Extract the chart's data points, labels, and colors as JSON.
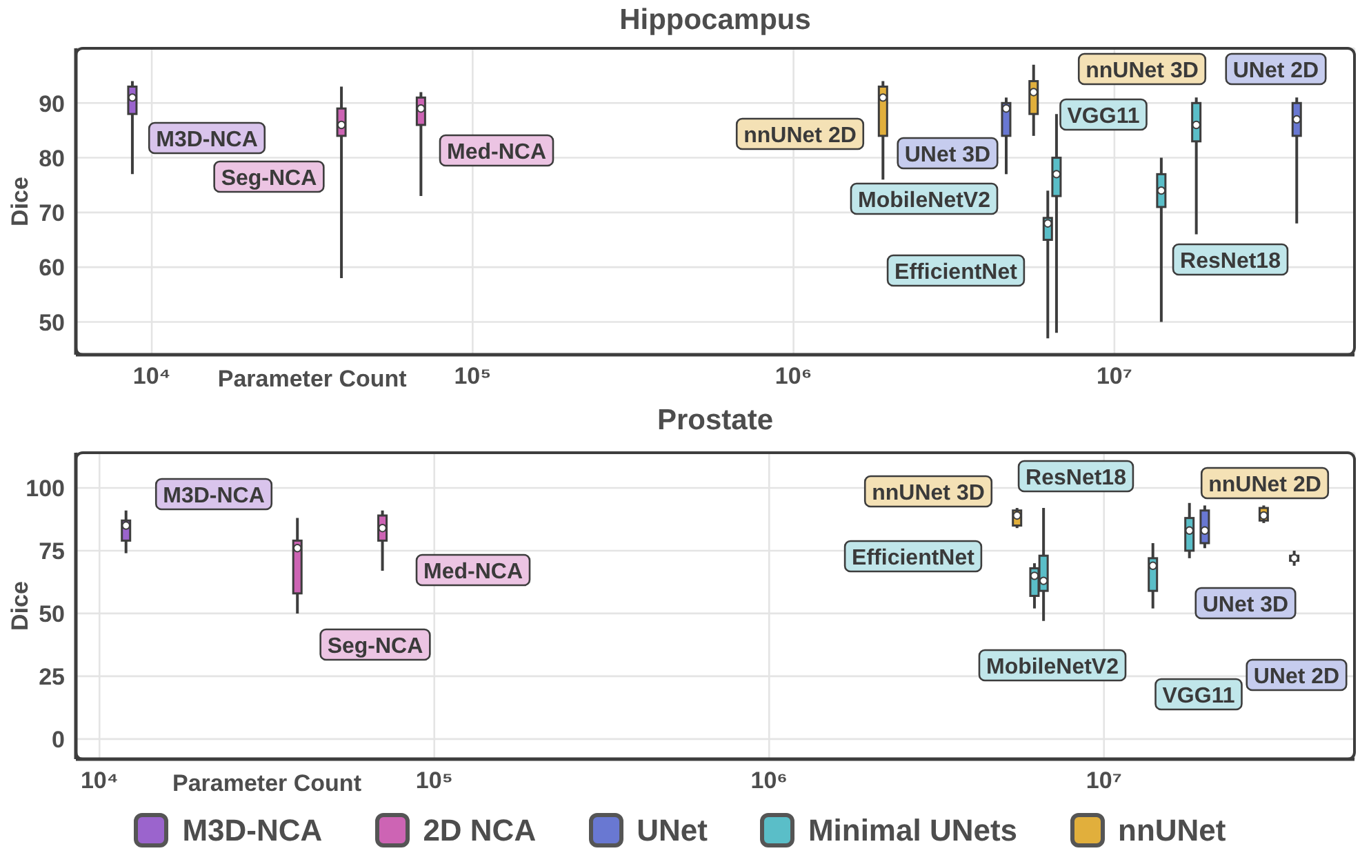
{
  "chart_data": [
    {
      "type": "box",
      "title": "Hippocampus",
      "xlabel": "Parameter Count",
      "ylabel": "Dice",
      "log": "x",
      "xlim": [
        5800,
        56000000
      ],
      "xticks": [
        {
          "value": 10000,
          "label": "10⁴"
        },
        {
          "value": 100000,
          "label": "10⁵"
        },
        {
          "value": 1000000,
          "label": "10⁶"
        },
        {
          "value": 10000000,
          "label": "10⁷"
        }
      ],
      "ylim": [
        44,
        100
      ],
      "yticks": [
        50,
        60,
        70,
        80,
        90
      ],
      "grid": true,
      "series": [
        {
          "color": "#9b64cd",
          "x": [
            8700
          ],
          "boxes": [
            {
              "low": 77,
              "q1": 88,
              "median": 91,
              "q3": 93,
              "high": 94
            }
          ]
        },
        {
          "color": "#cd64b4",
          "x": [
            39000,
            69000
          ],
          "boxes": [
            {
              "low": 58,
              "q1": 84,
              "median": 86,
              "q3": 89,
              "high": 93
            },
            {
              "low": 73,
              "q1": 86,
              "median": 89,
              "q3": 91,
              "high": 92
            }
          ]
        },
        {
          "color": "#6978d2",
          "x": [
            4600000,
            37000000
          ],
          "boxes": [
            {
              "low": 77,
              "q1": 84,
              "median": 89,
              "q3": 90,
              "high": 91
            },
            {
              "low": 68,
              "q1": 84,
              "median": 87,
              "q3": 90,
              "high": 91
            }
          ]
        },
        {
          "color": "#5abec8",
          "x": [
            6200000,
            6600000,
            14000000,
            18000000
          ],
          "boxes": [
            {
              "low": 47,
              "q1": 65,
              "median": 68,
              "q3": 69,
              "high": 74
            },
            {
              "low": 48,
              "q1": 73,
              "median": 77,
              "q3": 80,
              "high": 88
            },
            {
              "low": 50,
              "q1": 71,
              "median": 74,
              "q3": 77,
              "high": 80
            },
            {
              "low": 66,
              "q1": 83,
              "median": 86,
              "q3": 90,
              "high": 91
            }
          ]
        },
        {
          "color": "#e1af3c",
          "x": [
            1900000,
            5600000
          ],
          "boxes": [
            {
              "low": 76,
              "q1": 84,
              "median": 91,
              "q3": 93,
              "high": 94
            },
            {
              "low": 84,
              "q1": 88,
              "median": 92,
              "q3": 94,
              "high": 97
            }
          ]
        }
      ],
      "annotations": [
        "M3D-NCA",
        "Seg-NCA",
        "Med-NCA",
        "UNet 3D",
        "UNet 2D",
        "EfficientNet",
        "MobileNetV2",
        "ResNet18",
        "VGG11",
        "nnUNet 2D",
        "nnUNet 3D"
      ]
    },
    {
      "type": "box",
      "title": "Prostate",
      "xlabel": "Parameter Count",
      "ylabel": "Dice",
      "log": "x",
      "xlim": [
        8500,
        56000000
      ],
      "xticks": [
        {
          "value": 10000,
          "label": "10⁴"
        },
        {
          "value": 100000,
          "label": "10⁵"
        },
        {
          "value": 1000000,
          "label": "10⁶"
        },
        {
          "value": 10000000,
          "label": "10⁷"
        }
      ],
      "ylim": [
        -8,
        114
      ],
      "yticks": [
        0,
        25,
        50,
        75,
        100
      ],
      "grid": true,
      "legend": "bottom",
      "series": [
        {
          "name": "M3D-NCA",
          "color": "#9b64cd",
          "x": [
            12000
          ],
          "boxes": [
            {
              "low": 74,
              "q1": 79,
              "median": 85,
              "q3": 87,
              "high": 91
            }
          ]
        },
        {
          "name": "2D NCA",
          "color": "#cd64b4",
          "x": [
            39000,
            70000
          ],
          "boxes": [
            {
              "low": 50,
              "q1": 58,
              "median": 76,
              "q3": 79,
              "high": 88
            },
            {
              "low": 67,
              "q1": 79,
              "median": 84,
              "q3": 89,
              "high": 91
            }
          ]
        },
        {
          "name": "UNet",
          "color": "#6978d2",
          "x": [
            20000000,
            37000000
          ],
          "boxes": [
            {
              "low": 76,
              "q1": 78,
              "median": 83,
              "q3": 91,
              "high": 93
            },
            {
              "low": 69,
              "q1": 71,
              "median": 72,
              "q3": 73,
              "high": 75
            }
          ]
        },
        {
          "name": "Minimal UNets",
          "color": "#5abec8",
          "x": [
            6200000,
            6600000,
            14000000,
            18000000
          ],
          "boxes": [
            {
              "low": 52,
              "q1": 57,
              "median": 65,
              "q3": 68,
              "high": 70
            },
            {
              "low": 47,
              "q1": 59,
              "median": 63,
              "q3": 73,
              "high": 92
            },
            {
              "low": 52,
              "q1": 59,
              "median": 69,
              "q3": 72,
              "high": 78
            },
            {
              "low": 72,
              "q1": 75,
              "median": 83,
              "q3": 88,
              "high": 94
            }
          ]
        },
        {
          "name": "nnUNet",
          "color": "#e1af3c",
          "x": [
            30000000,
            5500000
          ],
          "boxes": [
            {
              "low": 86,
              "q1": 87,
              "median": 89,
              "q3": 92,
              "high": 93
            },
            {
              "low": 84,
              "q1": 85,
              "median": 89,
              "q3": 91,
              "high": 92
            }
          ]
        }
      ],
      "annotations": [
        "M3D-NCA",
        "Seg-NCA",
        "Med-NCA",
        "UNet 3D",
        "UNet 2D",
        "EfficientNet",
        "MobileNetV2",
        "ResNet18",
        "VGG11",
        "nnUNet 2D",
        "nnUNet 3D"
      ]
    }
  ]
}
